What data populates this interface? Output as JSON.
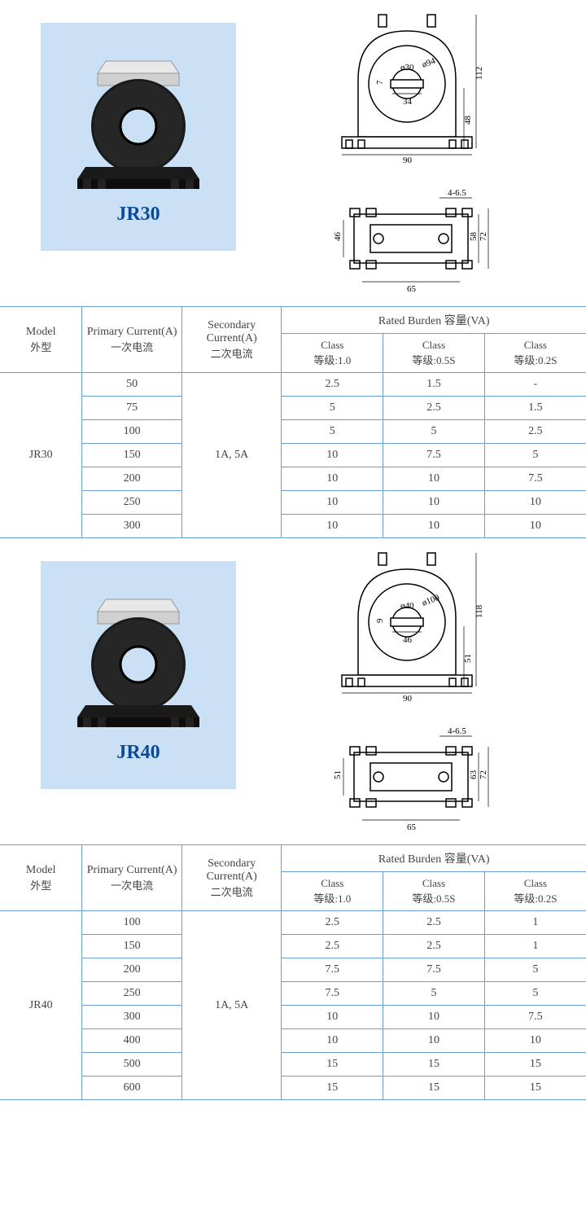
{
  "colors": {
    "table_border": "#6a9ed4",
    "photo_bg": "#c9e0f5",
    "label_color": "#0a4a9a",
    "diagram_stroke": "#000000"
  },
  "headers": {
    "model_en": "Model",
    "model_cn": "外型",
    "primary_en": "Primary Current(A)",
    "primary_cn": "一次电流",
    "secondary_en": "Secondary Current(A)",
    "secondary_cn": "二次电流",
    "burden_title": "Rated Burden 容量(VA)",
    "class1_en": "Class",
    "class1_cn": "等级:1.0",
    "class2_en": "Class",
    "class2_cn": "等级:0.5S",
    "class3_en": "Class",
    "class3_cn": "等级:0.2S"
  },
  "products": [
    {
      "name": "JR30",
      "dims_front": {
        "hole": "ø30",
        "outer": "ø94",
        "slot_h": "7",
        "slot_w": "34",
        "base_w": "90",
        "total_h": "112",
        "base_h": "48"
      },
      "dims_top": {
        "mount": "4-6.5",
        "h1": "46",
        "h2": "58",
        "h3": "72",
        "w": "65"
      },
      "secondary": "1A, 5A",
      "rows": [
        {
          "primary": "50",
          "c1": "2.5",
          "c2": "1.5",
          "c3": "-"
        },
        {
          "primary": "75",
          "c1": "5",
          "c2": "2.5",
          "c3": "1.5"
        },
        {
          "primary": "100",
          "c1": "5",
          "c2": "5",
          "c3": "2.5"
        },
        {
          "primary": "150",
          "c1": "10",
          "c2": "7.5",
          "c3": "5"
        },
        {
          "primary": "200",
          "c1": "10",
          "c2": "10",
          "c3": "7.5"
        },
        {
          "primary": "250",
          "c1": "10",
          "c2": "10",
          "c3": "10"
        },
        {
          "primary": "300",
          "c1": "10",
          "c2": "10",
          "c3": "10"
        }
      ]
    },
    {
      "name": "JR40",
      "dims_front": {
        "hole": "ø40",
        "outer": "ø100",
        "slot_h": "9",
        "slot_w": "46",
        "base_w": "90",
        "total_h": "118",
        "base_h": "51"
      },
      "dims_top": {
        "mount": "4-6.5",
        "h1": "51",
        "h2": "63",
        "h3": "72",
        "w": "65"
      },
      "secondary": "1A, 5A",
      "rows": [
        {
          "primary": "100",
          "c1": "2.5",
          "c2": "2.5",
          "c3": "1"
        },
        {
          "primary": "150",
          "c1": "2.5",
          "c2": "2.5",
          "c3": "1"
        },
        {
          "primary": "200",
          "c1": "7.5",
          "c2": "7.5",
          "c3": "5"
        },
        {
          "primary": "250",
          "c1": "7.5",
          "c2": "5",
          "c3": "5"
        },
        {
          "primary": "300",
          "c1": "10",
          "c2": "10",
          "c3": "7.5"
        },
        {
          "primary": "400",
          "c1": "10",
          "c2": "10",
          "c3": "10"
        },
        {
          "primary": "500",
          "c1": "15",
          "c2": "15",
          "c3": "15"
        },
        {
          "primary": "600",
          "c1": "15",
          "c2": "15",
          "c3": "15"
        }
      ]
    }
  ]
}
